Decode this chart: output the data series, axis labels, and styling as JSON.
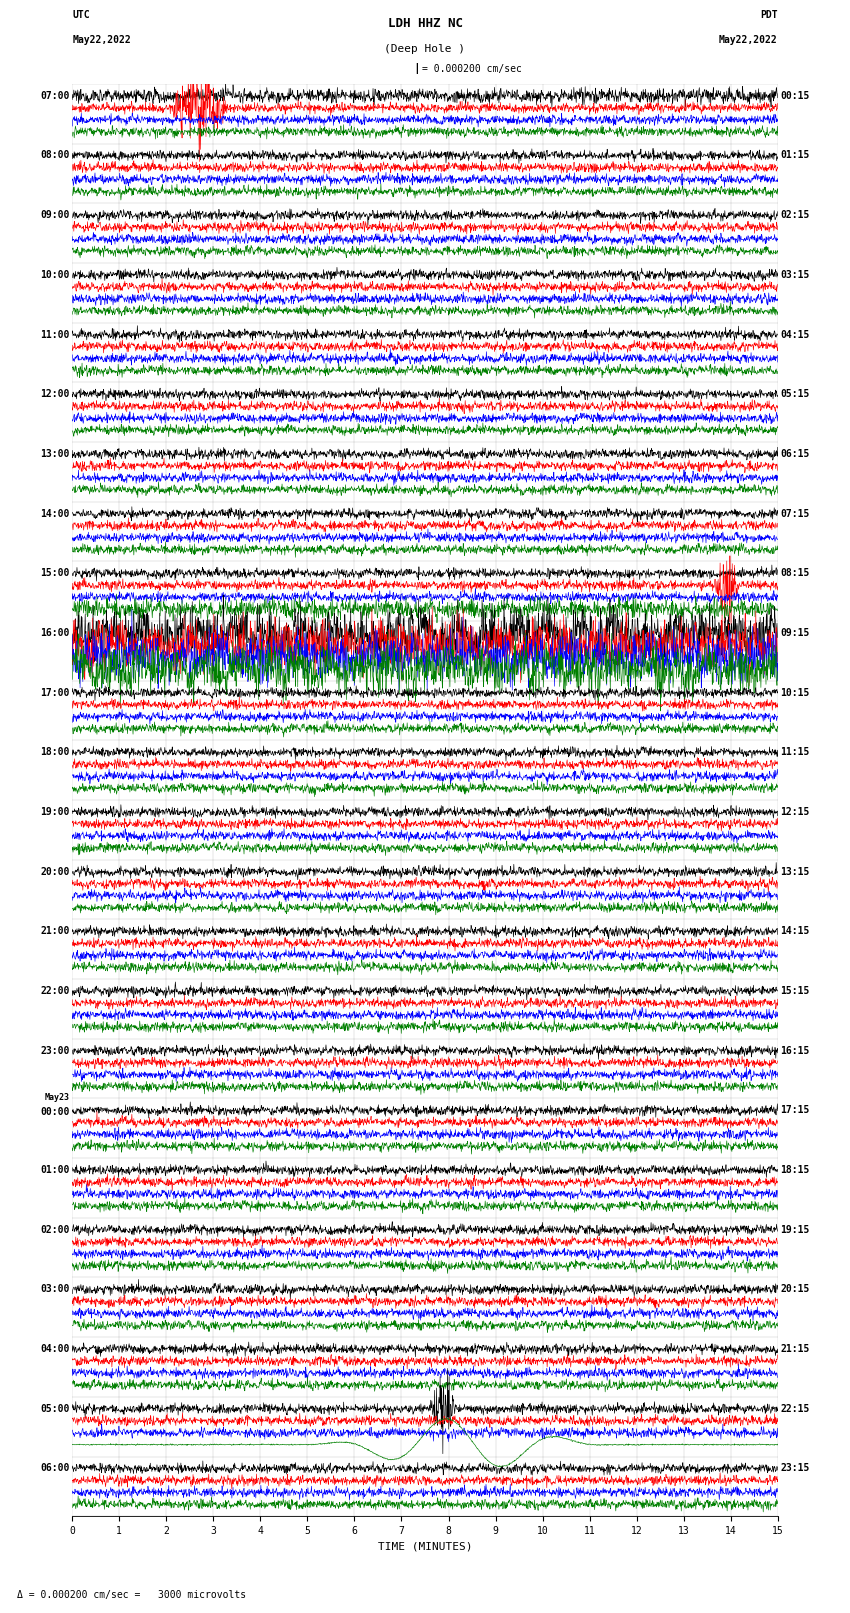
{
  "title_line1": "LDH HHZ NC",
  "title_line2": "(Deep Hole )",
  "scale_label": "= 0.000200 cm/sec",
  "footer_label": "= 0.000200 cm/sec =   3000 microvolts",
  "utc_label": "UTC",
  "pdt_label": "PDT",
  "date_left": "May22,2022",
  "date_right": "May22,2022",
  "xlabel": "TIME (MINUTES)",
  "left_times": [
    "07:00",
    "08:00",
    "09:00",
    "10:00",
    "11:00",
    "12:00",
    "13:00",
    "14:00",
    "15:00",
    "16:00",
    "17:00",
    "18:00",
    "19:00",
    "20:00",
    "21:00",
    "22:00",
    "23:00",
    "May23\n00:00",
    "01:00",
    "02:00",
    "03:00",
    "04:00",
    "05:00",
    "06:00"
  ],
  "right_times": [
    "00:15",
    "01:15",
    "02:15",
    "03:15",
    "04:15",
    "05:15",
    "06:15",
    "07:15",
    "08:15",
    "09:15",
    "10:15",
    "11:15",
    "12:15",
    "13:15",
    "14:15",
    "15:15",
    "16:15",
    "17:15",
    "18:15",
    "19:15",
    "20:15",
    "21:15",
    "22:15",
    "23:15"
  ],
  "n_rows": 24,
  "n_traces_per_row": 4,
  "colors": [
    "black",
    "red",
    "blue",
    "green"
  ],
  "bg_color": "white",
  "fig_width": 8.5,
  "fig_height": 16.13,
  "dpi": 100,
  "xmin": 0,
  "xmax": 15,
  "xticks": [
    0,
    1,
    2,
    3,
    4,
    5,
    6,
    7,
    8,
    9,
    10,
    11,
    12,
    13,
    14,
    15
  ],
  "tick_fontsize": 7,
  "label_fontsize": 8,
  "title_fontsize": 9,
  "lw": 0.45
}
